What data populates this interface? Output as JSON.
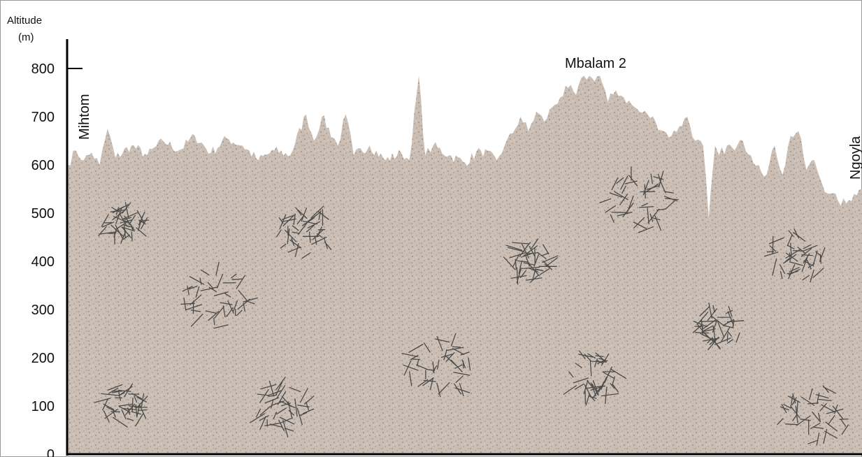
{
  "axis": {
    "title_line1": "Altitude",
    "title_line2": "(m)",
    "ticks": [
      0,
      100,
      200,
      300,
      400,
      500,
      600,
      700,
      800
    ],
    "ymin": 0,
    "ymax": 800
  },
  "places": {
    "left": "Mihtom",
    "peak": "Mbalam 2",
    "right": "Ngoyla"
  },
  "terrain": {
    "fill_color": "#cbbfb5",
    "speck_color": "#8f8378",
    "forest_color": "#4a4a4a",
    "profile_altitudes": [
      {
        "x": 0.0,
        "alt": 600
      },
      {
        "x": 0.01,
        "alt": 630
      },
      {
        "x": 0.02,
        "alt": 610
      },
      {
        "x": 0.03,
        "alt": 625
      },
      {
        "x": 0.04,
        "alt": 600
      },
      {
        "x": 0.05,
        "alt": 675
      },
      {
        "x": 0.06,
        "alt": 615
      },
      {
        "x": 0.08,
        "alt": 640
      },
      {
        "x": 0.1,
        "alt": 620
      },
      {
        "x": 0.12,
        "alt": 650
      },
      {
        "x": 0.14,
        "alt": 630
      },
      {
        "x": 0.16,
        "alt": 660
      },
      {
        "x": 0.18,
        "alt": 625
      },
      {
        "x": 0.2,
        "alt": 655
      },
      {
        "x": 0.22,
        "alt": 640
      },
      {
        "x": 0.24,
        "alt": 610
      },
      {
        "x": 0.26,
        "alt": 630
      },
      {
        "x": 0.28,
        "alt": 620
      },
      {
        "x": 0.3,
        "alt": 705
      },
      {
        "x": 0.31,
        "alt": 650
      },
      {
        "x": 0.32,
        "alt": 700
      },
      {
        "x": 0.34,
        "alt": 640
      },
      {
        "x": 0.35,
        "alt": 705
      },
      {
        "x": 0.36,
        "alt": 620
      },
      {
        "x": 0.38,
        "alt": 640
      },
      {
        "x": 0.4,
        "alt": 610
      },
      {
        "x": 0.42,
        "alt": 625
      },
      {
        "x": 0.43,
        "alt": 610
      },
      {
        "x": 0.442,
        "alt": 785
      },
      {
        "x": 0.45,
        "alt": 620
      },
      {
        "x": 0.46,
        "alt": 640
      },
      {
        "x": 0.48,
        "alt": 620
      },
      {
        "x": 0.5,
        "alt": 605
      },
      {
        "x": 0.52,
        "alt": 630
      },
      {
        "x": 0.54,
        "alt": 610
      },
      {
        "x": 0.55,
        "alt": 640
      },
      {
        "x": 0.56,
        "alt": 665
      },
      {
        "x": 0.57,
        "alt": 700
      },
      {
        "x": 0.58,
        "alt": 670
      },
      {
        "x": 0.59,
        "alt": 710
      },
      {
        "x": 0.6,
        "alt": 690
      },
      {
        "x": 0.61,
        "alt": 720
      },
      {
        "x": 0.62,
        "alt": 740
      },
      {
        "x": 0.63,
        "alt": 760
      },
      {
        "x": 0.64,
        "alt": 745
      },
      {
        "x": 0.65,
        "alt": 785
      },
      {
        "x": 0.66,
        "alt": 780
      },
      {
        "x": 0.67,
        "alt": 785
      },
      {
        "x": 0.68,
        "alt": 730
      },
      {
        "x": 0.69,
        "alt": 755
      },
      {
        "x": 0.7,
        "alt": 740
      },
      {
        "x": 0.71,
        "alt": 725
      },
      {
        "x": 0.72,
        "alt": 710
      },
      {
        "x": 0.73,
        "alt": 705
      },
      {
        "x": 0.74,
        "alt": 690
      },
      {
        "x": 0.75,
        "alt": 670
      },
      {
        "x": 0.76,
        "alt": 660
      },
      {
        "x": 0.77,
        "alt": 680
      },
      {
        "x": 0.78,
        "alt": 700
      },
      {
        "x": 0.79,
        "alt": 650
      },
      {
        "x": 0.8,
        "alt": 640
      },
      {
        "x": 0.807,
        "alt": 490
      },
      {
        "x": 0.815,
        "alt": 640
      },
      {
        "x": 0.82,
        "alt": 620
      },
      {
        "x": 0.83,
        "alt": 640
      },
      {
        "x": 0.84,
        "alt": 630
      },
      {
        "x": 0.85,
        "alt": 650
      },
      {
        "x": 0.86,
        "alt": 620
      },
      {
        "x": 0.87,
        "alt": 600
      },
      {
        "x": 0.88,
        "alt": 580
      },
      {
        "x": 0.89,
        "alt": 640
      },
      {
        "x": 0.9,
        "alt": 580
      },
      {
        "x": 0.91,
        "alt": 660
      },
      {
        "x": 0.92,
        "alt": 670
      },
      {
        "x": 0.93,
        "alt": 590
      },
      {
        "x": 0.94,
        "alt": 610
      },
      {
        "x": 0.95,
        "alt": 560
      },
      {
        "x": 0.96,
        "alt": 540
      },
      {
        "x": 0.97,
        "alt": 525
      },
      {
        "x": 0.98,
        "alt": 520
      },
      {
        "x": 0.99,
        "alt": 540
      },
      {
        "x": 1.0,
        "alt": 550
      }
    ],
    "forest_patches": [
      {
        "x": 0.07,
        "alt": 470
      },
      {
        "x": 0.3,
        "alt": 460
      },
      {
        "x": 0.19,
        "alt": 325
      },
      {
        "x": 0.07,
        "alt": 100
      },
      {
        "x": 0.27,
        "alt": 100
      },
      {
        "x": 0.47,
        "alt": 180
      },
      {
        "x": 0.58,
        "alt": 400
      },
      {
        "x": 0.66,
        "alt": 160
      },
      {
        "x": 0.72,
        "alt": 525
      },
      {
        "x": 0.82,
        "alt": 265
      },
      {
        "x": 0.92,
        "alt": 410
      },
      {
        "x": 0.94,
        "alt": 80
      }
    ]
  }
}
